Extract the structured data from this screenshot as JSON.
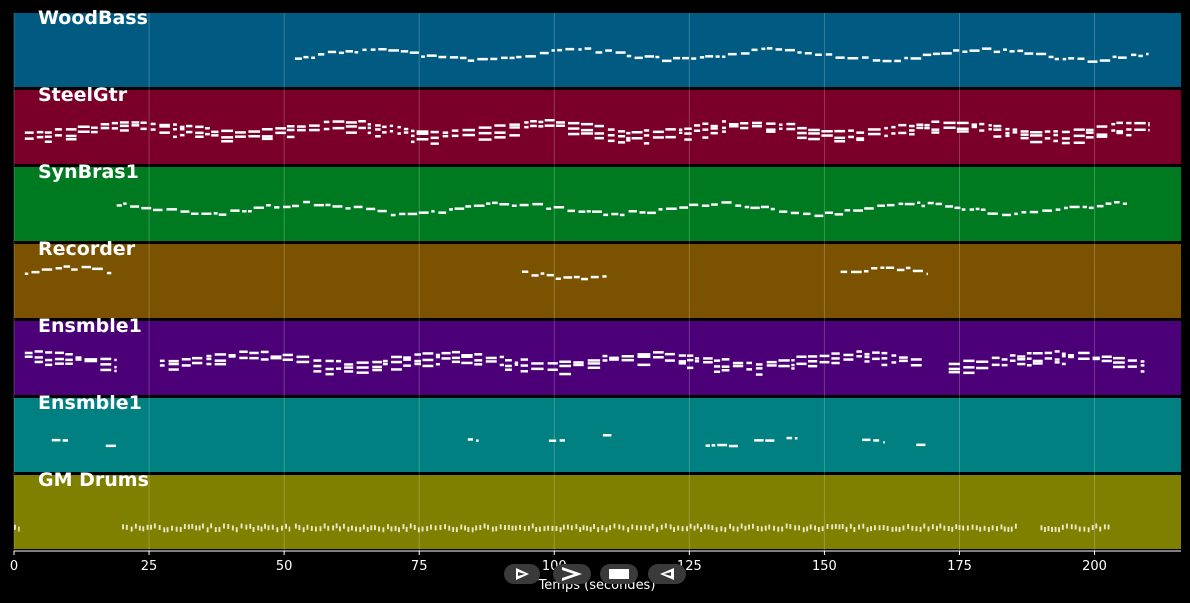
{
  "tracks": [
    {
      "name": "WoodBass",
      "color": "#005a82"
    },
    {
      "name": "SteelGtr",
      "color": "#7a0029"
    },
    {
      "name": "SynBras1",
      "color": "#007a20"
    },
    {
      "name": "Recorder",
      "color": "#7a5200"
    },
    {
      "name": "Ensmble1",
      "color": "#4b0078"
    },
    {
      "name": "Ensmble1",
      "color": "#008080"
    },
    {
      "name": "GM Drums",
      "color": "#7f7f00"
    }
  ],
  "x_axis": {
    "label": "Temps (secondes)",
    "ticks": [
      "0",
      "25",
      "50",
      "75",
      "100",
      "125",
      "150",
      "175",
      "200"
    ],
    "range": [
      0,
      216
    ]
  },
  "controls": [
    {
      "name": "play-button-icon"
    },
    {
      "name": "forward-button-icon"
    },
    {
      "name": "stop-button-icon"
    },
    {
      "name": "rewind-button-icon"
    }
  ]
}
